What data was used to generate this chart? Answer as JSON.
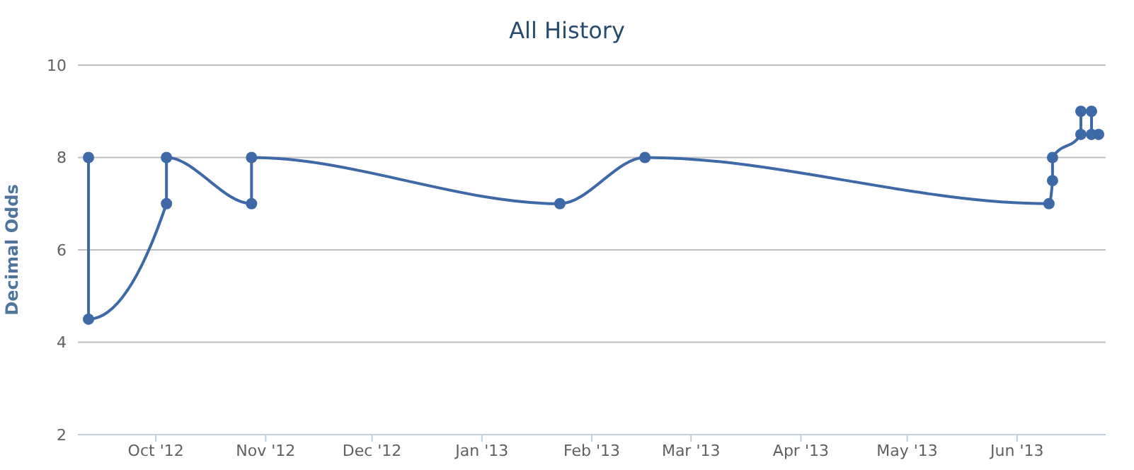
{
  "chart_data": {
    "type": "line",
    "title": "All History",
    "ylabel": "Decimal Odds",
    "x": [
      "2012-09-12",
      "2012-09-12",
      "2012-10-04",
      "2012-10-04",
      "2012-10-28",
      "2012-10-28",
      "2013-01-23",
      "2013-02-16",
      "2013-06-10",
      "2013-06-11",
      "2013-06-11",
      "2013-06-19",
      "2013-06-19",
      "2013-06-22",
      "2013-06-22",
      "2013-06-24"
    ],
    "series": [
      {
        "color": "#3d6aa6",
        "values": [
          8,
          4.5,
          7,
          8,
          7,
          8,
          7,
          8,
          7,
          7.5,
          8,
          8.5,
          9,
          9,
          8.5,
          8.5
        ]
      }
    ],
    "xlim": [
      "2012-09-09",
      "2013-06-26"
    ],
    "xticks": [
      {
        "value": "2012-10-01",
        "label": "Oct '12"
      },
      {
        "value": "2012-11-01",
        "label": "Nov '12"
      },
      {
        "value": "2012-12-01",
        "label": "Dec '12"
      },
      {
        "value": "2013-01-01",
        "label": "Jan '13"
      },
      {
        "value": "2013-02-01",
        "label": "Feb '13"
      },
      {
        "value": "2013-03-01",
        "label": "Mar '13"
      },
      {
        "value": "2013-04-01",
        "label": "Apr '13"
      },
      {
        "value": "2013-05-01",
        "label": "May '13"
      },
      {
        "value": "2013-06-01",
        "label": "Jun '13"
      }
    ],
    "ylim": [
      2,
      10
    ],
    "yticks": [
      2,
      4,
      6,
      8,
      10
    ],
    "grid": "y",
    "legend": false,
    "marker": "circle",
    "line_style": "solid"
  }
}
